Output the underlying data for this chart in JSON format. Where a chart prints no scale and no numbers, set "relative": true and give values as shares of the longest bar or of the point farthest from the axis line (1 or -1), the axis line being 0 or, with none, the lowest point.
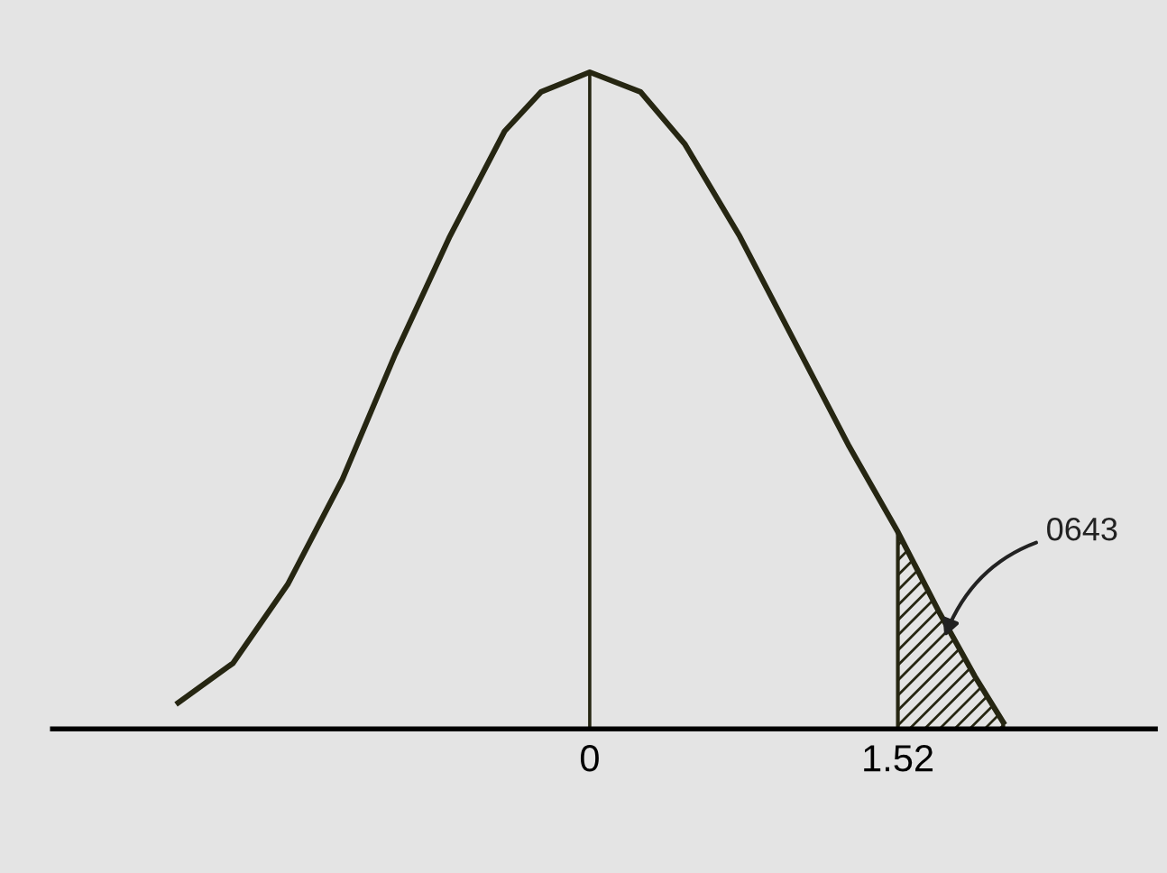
{
  "chart_data": {
    "type": "line",
    "relative": true,
    "tick_labels": "x",
    "grid": false,
    "legend": false,
    "marker": "none",
    "line_style": "solid",
    "xlim": [
      -2.65,
      2.79
    ],
    "xticks": [
      0,
      1.52
    ],
    "series": [
      {
        "color": "#262612",
        "x": [
          -2.03,
          -1.76,
          -1.49,
          -1.22,
          -0.96,
          -0.69,
          -0.42,
          -0.24,
          0,
          0.25,
          0.47,
          0.74,
          1.01,
          1.28,
          1.52,
          1.72,
          1.9,
          2.04
        ],
        "values": [
          0.04,
          0.1,
          0.22,
          0.38,
          0.57,
          0.75,
          0.91,
          0.97,
          1,
          0.97,
          0.89,
          0.75,
          0.59,
          0.43,
          0.3,
          0.18,
          0.08,
          0.01
        ]
      },
      {
        "type": "area",
        "color": "#262612",
        "x": [
          1.52,
          1.72,
          1.9,
          2.04
        ],
        "values": [
          0.3,
          0.18,
          0.08,
          0.01
        ]
      }
    ],
    "ref_lines": [
      {
        "axis": "x",
        "value": 0,
        "color": "#262612",
        "line_style": "solid"
      }
    ],
    "annotations": [
      {
        "text": "0643",
        "x": 1.75,
        "y": 0.14
      }
    ]
  }
}
